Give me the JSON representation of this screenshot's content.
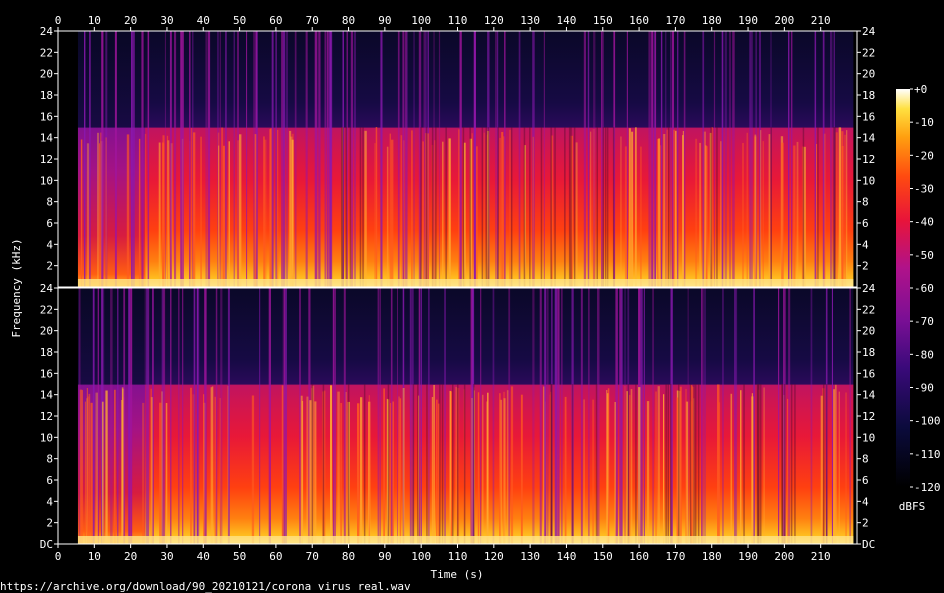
{
  "chart_data": {
    "type": "heatmap",
    "title": "",
    "xlabel": "Time (s)",
    "ylabel": "Frequency (kHz)",
    "x_ticks": [
      0,
      10,
      20,
      30,
      40,
      50,
      60,
      70,
      80,
      90,
      100,
      110,
      120,
      130,
      140,
      150,
      160,
      170,
      180,
      190,
      200,
      210
    ],
    "xlim": [
      0,
      220
    ],
    "channels": [
      {
        "y_tick_labels": [
          "24",
          "22",
          "20",
          "18",
          "16",
          "14",
          "12",
          "10",
          "8",
          "6",
          "4",
          "2"
        ],
        "ylim": [
          0,
          24
        ]
      },
      {
        "y_tick_labels": [
          "24",
          "22",
          "20",
          "18",
          "16",
          "14",
          "12",
          "10",
          "8",
          "6",
          "4",
          "2",
          "DC"
        ],
        "ylim": [
          0,
          24
        ]
      }
    ],
    "colorbar": {
      "label": "dBFS",
      "tick_labels": [
        "+0",
        "-10",
        "-20",
        "-30",
        "-40",
        "-50",
        "-60",
        "-70",
        "-80",
        "-90",
        "-100",
        "-110",
        "-120"
      ],
      "range": [
        -120,
        0
      ]
    },
    "audio_start_s": 5.5,
    "audio_end_s": 219,
    "lowpass_cutoff_khz": 15
  },
  "footer_url": "https://archive.org/download/90_20210121/corona virus real.wav"
}
